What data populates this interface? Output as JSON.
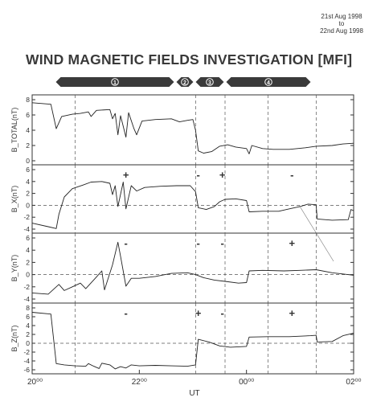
{
  "header": {
    "date_from": "21st Aug 1998",
    "date_to_word": "to",
    "date_to": "22nd Aug 1998",
    "title": "WIND MAGNETIC FIELDS INVESTIGATION [MFI]"
  },
  "colors": {
    "ink": "#333333",
    "banner": "#3a3a3a",
    "paper": "#ffffff"
  },
  "chart_data": {
    "type": "line",
    "xlabel": "UT",
    "x_tick_labels": [
      "20⁰⁰",
      "22⁰⁰",
      "00⁰⁰",
      "02⁰⁰"
    ],
    "x_tick_hours": [
      20,
      22,
      24,
      26
    ],
    "xlim_hours": [
      20,
      26
    ],
    "region_boundaries_hours": [
      20.8,
      23.05,
      23.6,
      24.4
    ],
    "extra_dashed_hours": [
      25.3
    ],
    "regions": [
      "1",
      "2",
      "3",
      "4"
    ],
    "panels": [
      {
        "ylabel": "B_TOTAL(nT)",
        "ylim": [
          0,
          8
        ],
        "ticks": [
          "0",
          "2",
          "4",
          "6",
          "8"
        ],
        "zero_line": false,
        "signs": [],
        "series": [
          [
            20,
            7.6
          ],
          [
            20.35,
            7.4
          ],
          [
            20.45,
            4.2
          ],
          [
            20.55,
            5.8
          ],
          [
            20.75,
            6.1
          ],
          [
            20.9,
            6.2
          ],
          [
            21.05,
            6.4
          ],
          [
            21.1,
            5.8
          ],
          [
            21.2,
            6.6
          ],
          [
            21.45,
            6.7
          ],
          [
            21.5,
            5.5
          ],
          [
            21.55,
            6.2
          ],
          [
            21.6,
            3.4
          ],
          [
            21.65,
            5.9
          ],
          [
            21.75,
            3.1
          ],
          [
            21.8,
            6.3
          ],
          [
            21.9,
            4.2
          ],
          [
            21.95,
            3.4
          ],
          [
            22.05,
            5.2
          ],
          [
            22.3,
            5.4
          ],
          [
            22.6,
            5.5
          ],
          [
            22.75,
            5.1
          ],
          [
            22.9,
            5.3
          ],
          [
            23.0,
            5.4
          ],
          [
            23.05,
            4.0
          ],
          [
            23.1,
            1.3
          ],
          [
            23.2,
            1.0
          ],
          [
            23.35,
            1.2
          ],
          [
            23.5,
            1.9
          ],
          [
            23.65,
            2.1
          ],
          [
            23.8,
            1.8
          ],
          [
            24.0,
            1.6
          ],
          [
            24.05,
            0.9
          ],
          [
            24.1,
            2.0
          ],
          [
            24.3,
            1.6
          ],
          [
            24.5,
            1.5
          ],
          [
            24.8,
            1.5
          ],
          [
            25.1,
            1.7
          ],
          [
            25.3,
            1.9
          ],
          [
            25.6,
            2.0
          ],
          [
            25.8,
            2.2
          ],
          [
            26.0,
            2.3
          ]
        ]
      },
      {
        "ylabel": "B_X(nT)",
        "ylim": [
          -4,
          6
        ],
        "ticks": [
          "-4",
          "-2",
          "0",
          "2",
          "4",
          "6"
        ],
        "zero_line": true,
        "signs": [
          {
            "text": "+",
            "hour": 21.75
          },
          {
            "text": "-",
            "hour": 23.1
          },
          {
            "text": "+",
            "hour": 23.55
          },
          {
            "text": "-",
            "hour": 24.85
          }
        ],
        "series": [
          [
            20,
            -3.0
          ],
          [
            20.3,
            -3.6
          ],
          [
            20.45,
            -3.9
          ],
          [
            20.5,
            -1.5
          ],
          [
            20.6,
            1.4
          ],
          [
            20.75,
            2.8
          ],
          [
            20.95,
            3.4
          ],
          [
            21.1,
            3.9
          ],
          [
            21.3,
            4.0
          ],
          [
            21.45,
            3.7
          ],
          [
            21.5,
            1.8
          ],
          [
            21.55,
            3.3
          ],
          [
            21.6,
            -0.2
          ],
          [
            21.7,
            3.9
          ],
          [
            21.75,
            -0.6
          ],
          [
            21.85,
            3.3
          ],
          [
            21.95,
            2.4
          ],
          [
            22.1,
            3.0
          ],
          [
            22.4,
            3.2
          ],
          [
            22.7,
            3.3
          ],
          [
            22.95,
            3.3
          ],
          [
            23.05,
            2.3
          ],
          [
            23.1,
            -0.4
          ],
          [
            23.25,
            -0.7
          ],
          [
            23.4,
            -0.2
          ],
          [
            23.5,
            0.6
          ],
          [
            23.6,
            1.0
          ],
          [
            23.8,
            1.1
          ],
          [
            24.0,
            0.8
          ],
          [
            24.05,
            -1.1
          ],
          [
            24.3,
            -1.0
          ],
          [
            24.6,
            -1.0
          ],
          [
            24.8,
            -0.6
          ],
          [
            25.0,
            -0.2
          ],
          [
            25.15,
            0.2
          ],
          [
            25.3,
            0.1
          ],
          [
            25.32,
            -2.3
          ],
          [
            25.6,
            -2.5
          ],
          [
            25.9,
            -2.4
          ],
          [
            25.95,
            -0.7
          ],
          [
            26.0,
            -0.9
          ]
        ]
      },
      {
        "ylabel": "B_Y(nT)",
        "ylim": [
          -4,
          6
        ],
        "ticks": [
          "-4",
          "-2",
          "0",
          "2",
          "4",
          "6"
        ],
        "zero_line": true,
        "signs": [
          {
            "text": "-",
            "hour": 21.75
          },
          {
            "text": "-",
            "hour": 23.1
          },
          {
            "text": "-",
            "hour": 23.55
          },
          {
            "text": "+",
            "hour": 24.85
          }
        ],
        "series": [
          [
            20,
            -3.0
          ],
          [
            20.3,
            -3.2
          ],
          [
            20.4,
            -2.4
          ],
          [
            20.5,
            -1.6
          ],
          [
            20.6,
            -2.6
          ],
          [
            20.75,
            -2.0
          ],
          [
            20.9,
            -1.4
          ],
          [
            21.0,
            -2.3
          ],
          [
            21.2,
            -0.4
          ],
          [
            21.3,
            0.6
          ],
          [
            21.35,
            -2.5
          ],
          [
            21.5,
            1.6
          ],
          [
            21.6,
            5.3
          ],
          [
            21.65,
            3.0
          ],
          [
            21.75,
            -1.9
          ],
          [
            21.85,
            -0.6
          ],
          [
            22.0,
            -0.6
          ],
          [
            22.3,
            -0.3
          ],
          [
            22.6,
            0.2
          ],
          [
            22.9,
            0.3
          ],
          [
            23.05,
            0.0
          ],
          [
            23.2,
            -0.5
          ],
          [
            23.4,
            -0.9
          ],
          [
            23.6,
            -1.1
          ],
          [
            23.85,
            -1.4
          ],
          [
            24.0,
            -1.3
          ],
          [
            24.05,
            0.6
          ],
          [
            24.3,
            0.7
          ],
          [
            24.7,
            0.6
          ],
          [
            25.0,
            0.7
          ],
          [
            25.3,
            0.8
          ],
          [
            25.6,
            0.3
          ],
          [
            25.8,
            0.1
          ],
          [
            26.0,
            -0.1
          ]
        ]
      },
      {
        "ylabel": "B_Z(nT)",
        "ylim": [
          -6,
          8
        ],
        "ticks": [
          "-6",
          "-4",
          "-2",
          "0",
          "2",
          "4",
          "6",
          "8"
        ],
        "zero_line": true,
        "signs": [
          {
            "text": "-",
            "hour": 21.75
          },
          {
            "text": "+",
            "hour": 23.1
          },
          {
            "text": "-",
            "hour": 23.55
          },
          {
            "text": "+",
            "hour": 24.85
          }
        ],
        "series": [
          [
            20,
            7.0
          ],
          [
            20.35,
            6.6
          ],
          [
            20.45,
            -4.6
          ],
          [
            20.6,
            -4.9
          ],
          [
            20.8,
            -5.1
          ],
          [
            21.0,
            -5.2
          ],
          [
            21.05,
            -4.6
          ],
          [
            21.15,
            -5.2
          ],
          [
            21.25,
            -5.7
          ],
          [
            21.3,
            -4.5
          ],
          [
            21.45,
            -4.9
          ],
          [
            21.55,
            -5.8
          ],
          [
            21.65,
            -5.3
          ],
          [
            21.75,
            -5.6
          ],
          [
            21.85,
            -4.9
          ],
          [
            22.0,
            -5.1
          ],
          [
            22.3,
            -5.0
          ],
          [
            22.6,
            -5.1
          ],
          [
            22.9,
            -5.2
          ],
          [
            23.05,
            -4.9
          ],
          [
            23.1,
            0.9
          ],
          [
            23.3,
            0.3
          ],
          [
            23.5,
            -0.6
          ],
          [
            23.7,
            -0.9
          ],
          [
            24.0,
            -0.7
          ],
          [
            24.05,
            1.4
          ],
          [
            24.4,
            1.5
          ],
          [
            24.8,
            1.5
          ],
          [
            25.2,
            1.7
          ],
          [
            25.3,
            1.8
          ],
          [
            25.32,
            0.3
          ],
          [
            25.6,
            0.4
          ],
          [
            25.8,
            1.7
          ],
          [
            26.0,
            2.3
          ]
        ]
      }
    ]
  }
}
